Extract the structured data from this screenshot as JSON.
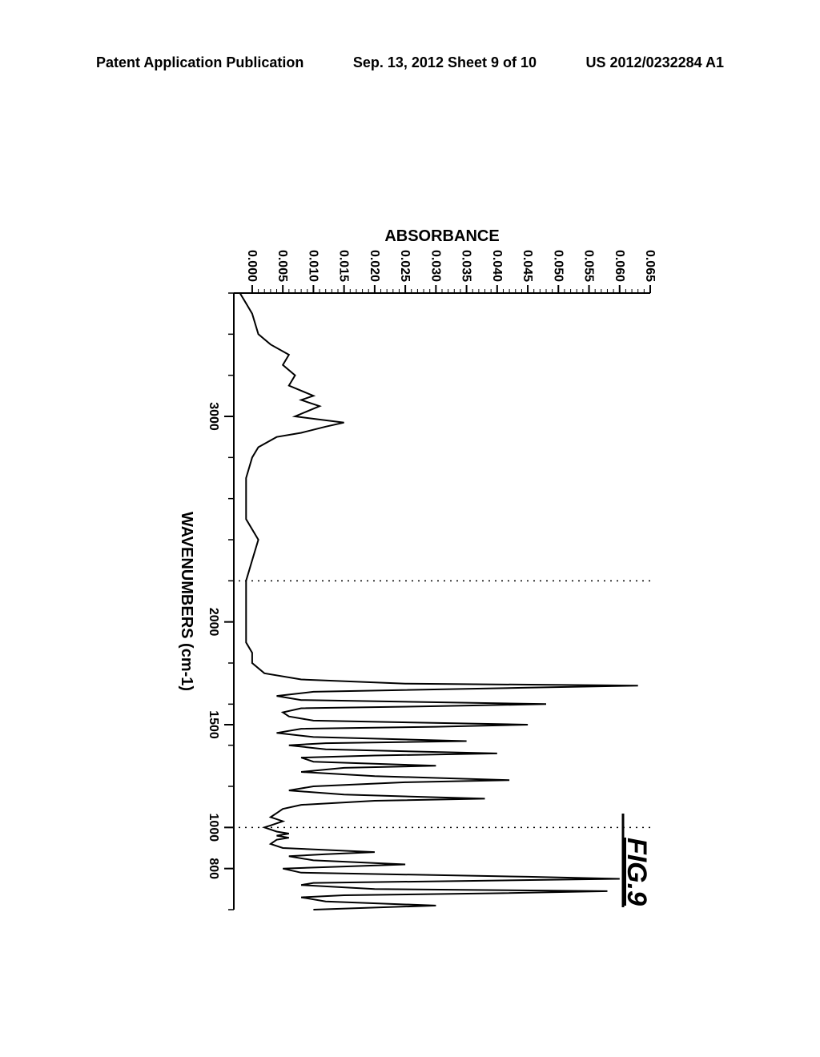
{
  "header": {
    "left": "Patent Application Publication",
    "center": "Sep. 13, 2012  Sheet 9 of 10",
    "right": "US 2012/0232284 A1"
  },
  "figure_label": "FIG.9",
  "chart": {
    "type": "line",
    "xlabel": "WAVENUMBERS (cm-1)",
    "ylabel": "ABSORBANCE",
    "xlim": [
      3600,
      600
    ],
    "ylim": [
      -0.003,
      0.065
    ],
    "xtick_major": [
      3000,
      2000,
      1500,
      1000,
      800
    ],
    "xtick_minor_step": 200,
    "ytick_values": [
      0.0,
      0.005,
      0.01,
      0.015,
      0.02,
      0.025,
      0.03,
      0.035,
      0.04,
      0.045,
      0.05,
      0.055,
      0.06,
      0.065
    ],
    "ytick_labels": [
      "0.000",
      "0.005",
      "0.010",
      "0.015",
      "0.020",
      "0.025",
      "0.030",
      "0.035",
      "0.040",
      "0.045",
      "0.050",
      "0.055",
      "0.060",
      "0.065"
    ],
    "line_color": "#000000",
    "line_width": 2.0,
    "background_color": "#ffffff",
    "axis_color": "#000000",
    "grid_dotted_x_positions": [
      2200,
      1000
    ],
    "grid_color": "#000000",
    "data_points": [
      [
        3600,
        -0.002
      ],
      [
        3550,
        -0.001
      ],
      [
        3500,
        0.0
      ],
      [
        3400,
        0.001
      ],
      [
        3350,
        0.003
      ],
      [
        3300,
        0.006
      ],
      [
        3250,
        0.005
      ],
      [
        3200,
        0.007
      ],
      [
        3150,
        0.006
      ],
      [
        3100,
        0.01
      ],
      [
        3080,
        0.008
      ],
      [
        3050,
        0.011
      ],
      [
        3000,
        0.007
      ],
      [
        2970,
        0.015
      ],
      [
        2950,
        0.012
      ],
      [
        2920,
        0.008
      ],
      [
        2900,
        0.004
      ],
      [
        2850,
        0.001
      ],
      [
        2800,
        0.0
      ],
      [
        2700,
        -0.001
      ],
      [
        2500,
        -0.001
      ],
      [
        2400,
        0.001
      ],
      [
        2300,
        0.0
      ],
      [
        2200,
        -0.001
      ],
      [
        2100,
        -0.001
      ],
      [
        2000,
        -0.001
      ],
      [
        1900,
        -0.001
      ],
      [
        1850,
        0.0
      ],
      [
        1800,
        0.0
      ],
      [
        1750,
        0.002
      ],
      [
        1720,
        0.008
      ],
      [
        1700,
        0.025
      ],
      [
        1690,
        0.063
      ],
      [
        1680,
        0.045
      ],
      [
        1660,
        0.01
      ],
      [
        1640,
        0.004
      ],
      [
        1620,
        0.008
      ],
      [
        1600,
        0.048
      ],
      [
        1590,
        0.03
      ],
      [
        1580,
        0.008
      ],
      [
        1560,
        0.005
      ],
      [
        1540,
        0.006
      ],
      [
        1520,
        0.01
      ],
      [
        1500,
        0.045
      ],
      [
        1490,
        0.03
      ],
      [
        1480,
        0.008
      ],
      [
        1460,
        0.004
      ],
      [
        1440,
        0.01
      ],
      [
        1420,
        0.035
      ],
      [
        1410,
        0.012
      ],
      [
        1400,
        0.006
      ],
      [
        1380,
        0.012
      ],
      [
        1360,
        0.04
      ],
      [
        1350,
        0.02
      ],
      [
        1340,
        0.008
      ],
      [
        1320,
        0.01
      ],
      [
        1300,
        0.03
      ],
      [
        1290,
        0.015
      ],
      [
        1270,
        0.008
      ],
      [
        1250,
        0.02
      ],
      [
        1230,
        0.042
      ],
      [
        1220,
        0.025
      ],
      [
        1200,
        0.01
      ],
      [
        1180,
        0.006
      ],
      [
        1160,
        0.015
      ],
      [
        1140,
        0.038
      ],
      [
        1130,
        0.02
      ],
      [
        1110,
        0.008
      ],
      [
        1090,
        0.005
      ],
      [
        1070,
        0.004
      ],
      [
        1050,
        0.003
      ],
      [
        1030,
        0.005
      ],
      [
        1010,
        0.003
      ],
      [
        1000,
        0.002
      ],
      [
        980,
        0.004
      ],
      [
        970,
        0.006
      ],
      [
        960,
        0.004
      ],
      [
        950,
        0.006
      ],
      [
        940,
        0.004
      ],
      [
        920,
        0.003
      ],
      [
        900,
        0.005
      ],
      [
        880,
        0.02
      ],
      [
        870,
        0.012
      ],
      [
        860,
        0.006
      ],
      [
        840,
        0.01
      ],
      [
        820,
        0.025
      ],
      [
        810,
        0.015
      ],
      [
        800,
        0.005
      ],
      [
        780,
        0.008
      ],
      [
        760,
        0.045
      ],
      [
        750,
        0.06
      ],
      [
        740,
        0.035
      ],
      [
        730,
        0.01
      ],
      [
        720,
        0.008
      ],
      [
        700,
        0.02
      ],
      [
        690,
        0.058
      ],
      [
        680,
        0.04
      ],
      [
        670,
        0.015
      ],
      [
        660,
        0.008
      ],
      [
        640,
        0.012
      ],
      [
        620,
        0.03
      ],
      [
        610,
        0.02
      ],
      [
        600,
        0.01
      ]
    ]
  }
}
